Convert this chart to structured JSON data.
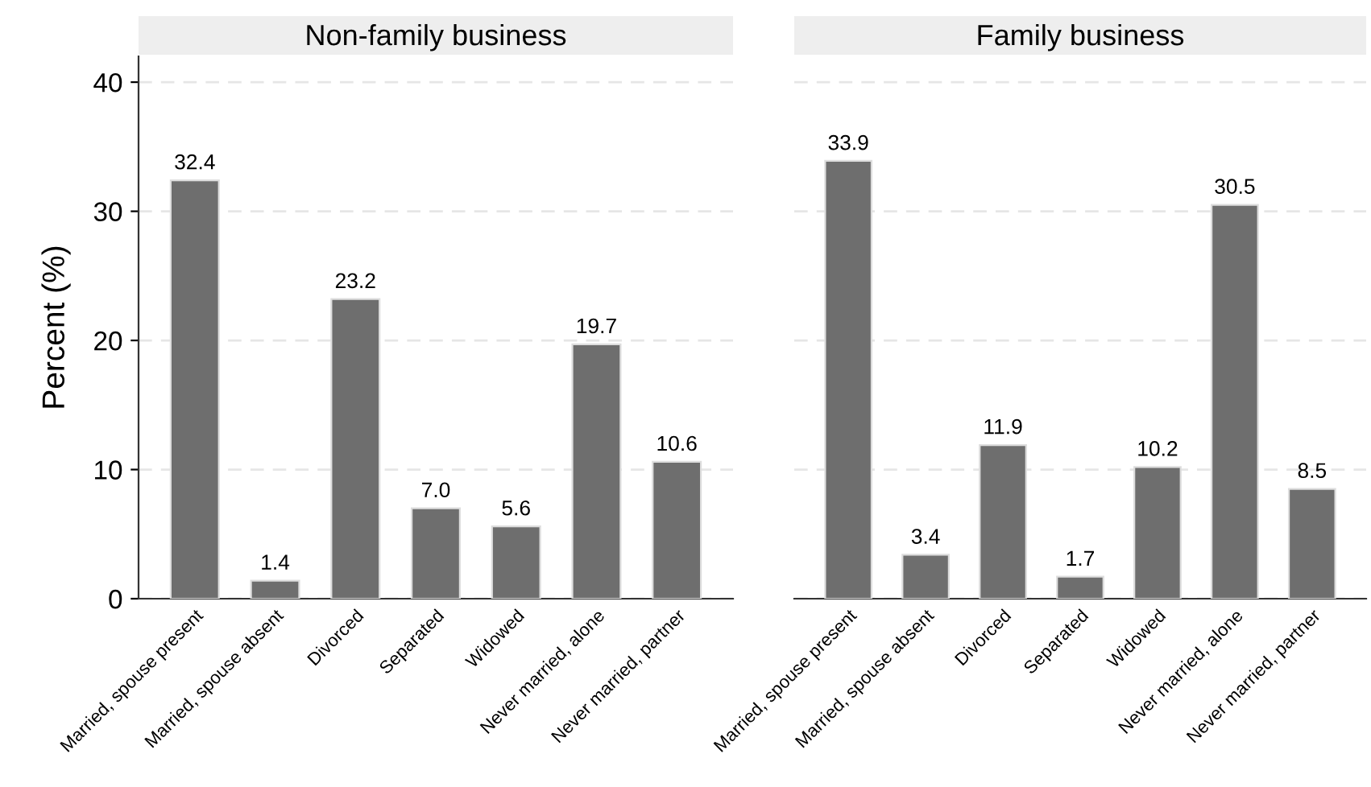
{
  "chart_data": [
    {
      "type": "bar",
      "title": "Non-family business",
      "ylabel": "Percent (%)",
      "categories": [
        "Married, spouse present",
        "Married, spouse absent",
        "Divorced",
        "Separated",
        "Widowed",
        "Never married, alone",
        "Never married, partner"
      ],
      "values": [
        32.4,
        1.4,
        23.2,
        7.0,
        5.6,
        19.7,
        10.6
      ],
      "color": "#6e6e6e",
      "ylim": [
        0,
        42
      ],
      "yticks": [
        0,
        10,
        20,
        30,
        40
      ],
      "grid": "y",
      "data_labels": true,
      "value_labels": [
        "32.4",
        "1.4",
        "23.2",
        "7.0",
        "5.6",
        "19.7",
        "10.6"
      ]
    },
    {
      "type": "bar",
      "title": "Family business",
      "categories": [
        "Married, spouse present",
        "Married, spouse absent",
        "Divorced",
        "Separated",
        "Widowed",
        "Never married, alone",
        "Never married, partner"
      ],
      "values": [
        33.9,
        3.4,
        11.9,
        1.7,
        10.2,
        30.5,
        8.5
      ],
      "color": "#6e6e6e",
      "grid": "y",
      "data_labels": true,
      "value_labels": [
        "33.9",
        "3.4",
        "11.9",
        "1.7",
        "10.2",
        "30.5",
        "8.5"
      ],
      "tick_labels": "x"
    }
  ]
}
